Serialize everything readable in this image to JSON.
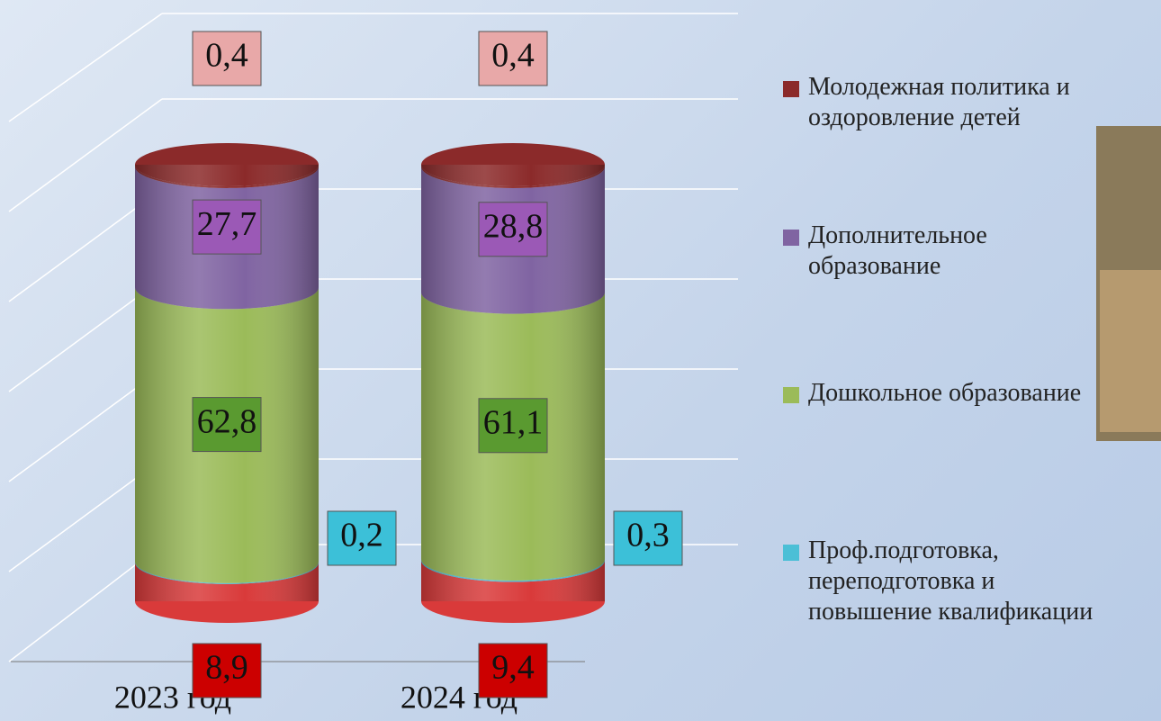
{
  "chart_data": {
    "type": "stacked-cylinder",
    "categories": [
      "2023 год",
      "2024 год"
    ],
    "ylim": [
      0,
      100
    ],
    "series": [
      {
        "color": "#d93a3a",
        "values": [
          8.9,
          9.4
        ],
        "value_labels": [
          "8,9",
          "9,4"
        ],
        "label_color": "#cc0000"
      },
      {
        "name": "Проф.подготовка, переподготовка и повышение квалификации",
        "color": "#4bbfd6",
        "values": [
          0.2,
          0.3
        ],
        "value_labels": [
          "0,2",
          "0,3"
        ],
        "label_color": "#3cc0d8"
      },
      {
        "name": "Дошкольное образование",
        "color": "#9bbb59",
        "values": [
          62.8,
          61.1
        ],
        "value_labels": [
          "62,8",
          "61,1"
        ],
        "label_color": "#5a9a30"
      },
      {
        "name": "Дополнительное образование",
        "color": "#8064a2",
        "values": [
          27.7,
          28.8
        ],
        "value_labels": [
          "27,7",
          "28,8"
        ],
        "label_color": "#9b59b6"
      },
      {
        "name": "Молодежная политика и оздоровление детей",
        "color": "#8b2a2a",
        "values": [
          0.4,
          0.4
        ],
        "value_labels": [
          "0,4",
          "0,4"
        ],
        "label_color": "#e8a8a8"
      }
    ]
  }
}
